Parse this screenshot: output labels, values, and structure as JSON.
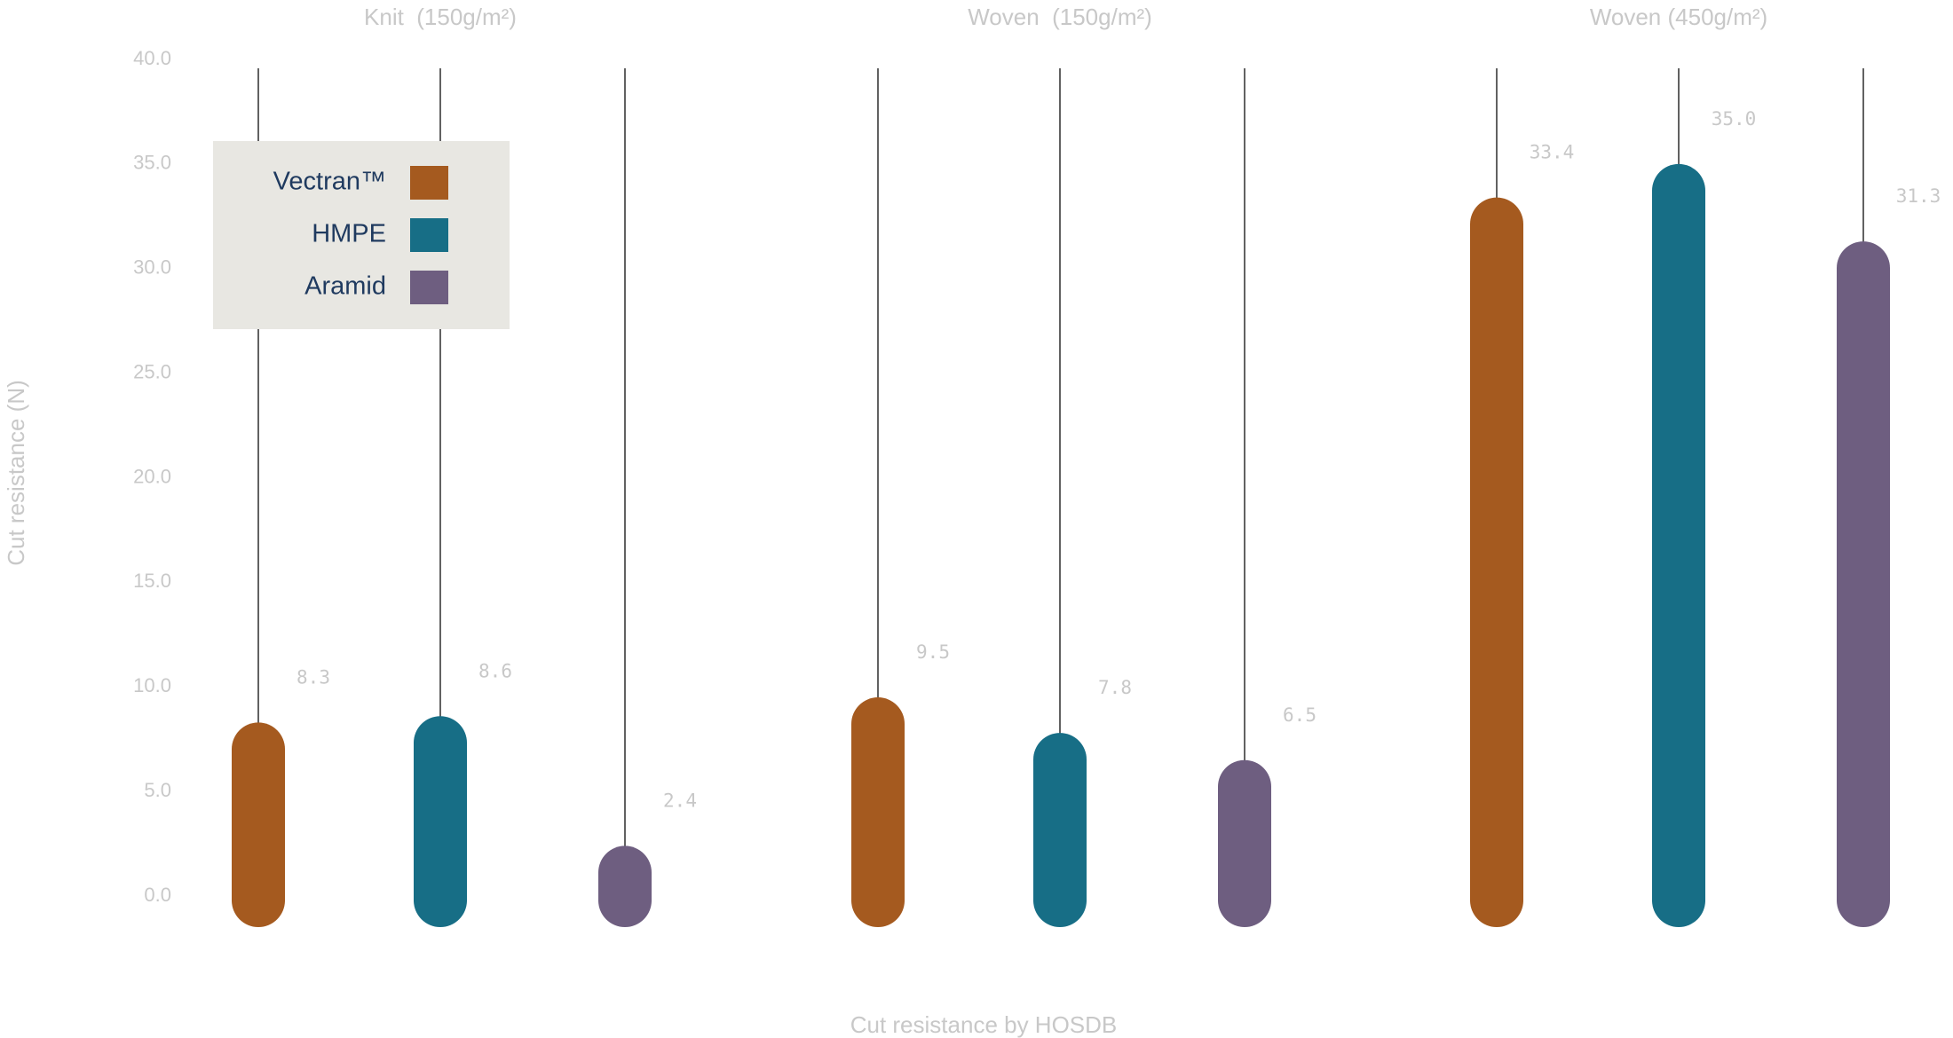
{
  "chart_data": {
    "type": "bar",
    "xlabel": "Cut resistance by HOSDB",
    "ylabel": "Cut resistance (N)",
    "ylim": [
      0,
      40
    ],
    "yticks": [
      "0.0",
      "5.0",
      "10.0",
      "15.0",
      "20.0",
      "25.0",
      "30.0",
      "35.0",
      "40.0"
    ],
    "grid": false,
    "legend_position": "top-left",
    "categories": [
      "Knit  (150g/m²)",
      "Woven  (150g/m²)",
      "Woven (450g/m²)"
    ],
    "series": [
      {
        "name": "Vectran™",
        "color": "#a55a1f",
        "values": [
          8.3,
          9.5,
          33.4
        ],
        "labels": [
          "8.3",
          "9.5",
          "33.4"
        ]
      },
      {
        "name": "HMPE",
        "color": "#176e86",
        "values": [
          8.6,
          7.8,
          35.0
        ],
        "labels": [
          "8.6",
          "7.8",
          "35.0"
        ]
      },
      {
        "name": "Aramid",
        "color": "#6e5e80",
        "values": [
          2.4,
          6.5,
          31.3
        ],
        "labels": [
          "2.4",
          "6.5",
          "31.3"
        ]
      }
    ]
  },
  "colors": {
    "legend_background": "#e8e7e2",
    "muted_text": "#c8c8c8",
    "legend_text": "#1f3a5f",
    "guide_line": "#3a3a3a"
  }
}
